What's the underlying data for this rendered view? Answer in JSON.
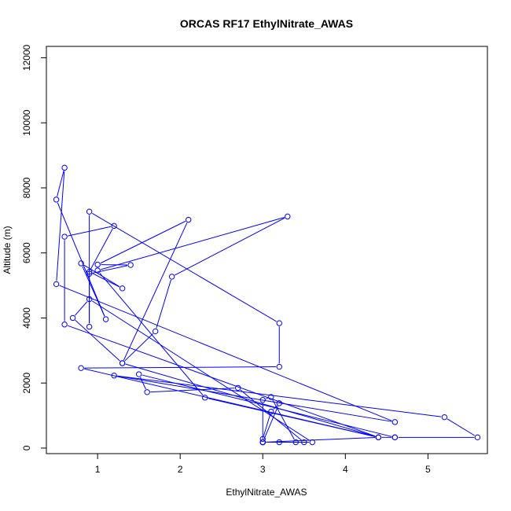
{
  "chart_data": {
    "type": "line",
    "title": "ORCAS RF17 EthylNitrate_AWAS",
    "xlabel": "EthylNitrate_AWAS",
    "ylabel": "Altitude (m)",
    "xlim": [
      0.38,
      5.72
    ],
    "ylim": [
      -170,
      12350
    ],
    "x_ticks": [
      1,
      2,
      3,
      4,
      5
    ],
    "y_ticks": [
      0,
      2000,
      4000,
      6000,
      8000,
      10000,
      12000
    ],
    "grid": false,
    "legend": "none",
    "series": [
      {
        "color": "#0000ff",
        "marker": "open-circle",
        "points": [
          [
            3.2,
            180
          ],
          [
            3.0,
            180
          ],
          [
            3.0,
            280
          ],
          [
            3.1,
            1120
          ],
          [
            3.2,
            1380
          ],
          [
            3.0,
            180
          ],
          [
            3.0,
            1480
          ],
          [
            3.1,
            1570
          ],
          [
            3.4,
            180
          ],
          [
            3.0,
            180
          ],
          [
            3.5,
            180
          ],
          [
            2.7,
            1850
          ],
          [
            1.6,
            1720
          ],
          [
            1.5,
            2270
          ],
          [
            4.6,
            330
          ],
          [
            5.6,
            330
          ],
          [
            5.2,
            950
          ],
          [
            1.2,
            2230
          ],
          [
            4.6,
            800
          ],
          [
            0.5,
            5040
          ],
          [
            0.6,
            8620
          ],
          [
            0.5,
            7640
          ],
          [
            1.1,
            3960
          ],
          [
            0.8,
            5680
          ],
          [
            1.3,
            4910
          ],
          [
            0.9,
            5420
          ],
          [
            1.2,
            6830
          ],
          [
            0.6,
            6500
          ],
          [
            0.6,
            3800
          ],
          [
            4.4,
            330
          ],
          [
            3.0,
            180
          ],
          [
            3.6,
            180
          ],
          [
            0.9,
            4580
          ],
          [
            0.7,
            4000
          ],
          [
            1.3,
            2610
          ],
          [
            4.4,
            330
          ],
          [
            0.8,
            2460
          ],
          [
            3.2,
            2500
          ],
          [
            3.2,
            3840
          ],
          [
            0.9,
            7270
          ],
          [
            0.9,
            3730
          ],
          [
            0.9,
            5360
          ],
          [
            1.4,
            5630
          ],
          [
            1.0,
            5640
          ],
          [
            2.1,
            7020
          ],
          [
            1.3,
            2610
          ],
          [
            1.7,
            3590
          ],
          [
            1.9,
            5270
          ],
          [
            3.3,
            7120
          ],
          [
            1.0,
            5460
          ],
          [
            2.3,
            1550
          ],
          [
            4.4,
            330
          ],
          [
            4.6,
            330
          ]
        ]
      }
    ]
  }
}
